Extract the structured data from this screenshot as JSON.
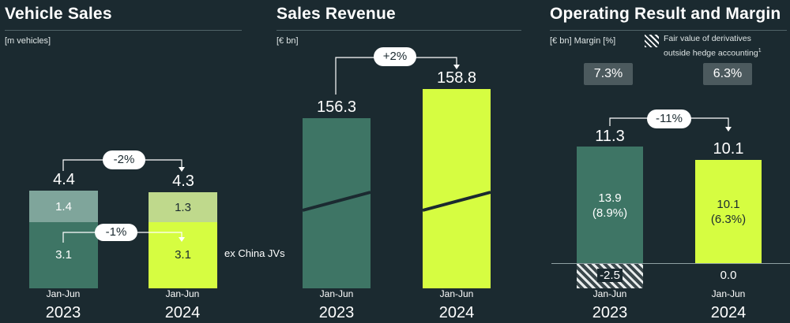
{
  "colors": {
    "background": "#1b2a30",
    "bar_2023": "#3e7565",
    "bar_2023_top": "#7fa59b",
    "bar_2024": "#d6fd41",
    "bar_2024_top": "#bfd98c",
    "pill": "#ffffff",
    "margin_box": "#4c5a5e"
  },
  "vehicle_sales": {
    "title": "Vehicle Sales",
    "unit": "[m vehicles]",
    "change_total": "-2%",
    "change_ex_china": "-1%",
    "ex_china_label": "ex China JVs",
    "x1a": "Jan-Jun",
    "x1b": "2023",
    "x2a": "Jan-Jun",
    "x2b": "2024",
    "total_2023": "4.4",
    "total_2024": "4.3",
    "china_2023": "1.4",
    "china_2024": "1.3",
    "ex_2023": "3.1",
    "ex_2024": "3.1"
  },
  "sales_revenue": {
    "title": "Sales Revenue",
    "unit": "[€ bn]",
    "change": "+2%",
    "val_2023": "156.3",
    "val_2024": "158.8",
    "x1a": "Jan-Jun",
    "x1b": "2023",
    "x2a": "Jan-Jun",
    "x2b": "2024"
  },
  "operating_result": {
    "title": "Operating Result and Margin",
    "unit": "[€ bn] Margin [%]",
    "legend_line1": "Fair value of derivatives",
    "legend_line2": "outside hedge accounting",
    "legend_sup": "1",
    "margin_2023": "7.3%",
    "margin_2024": "6.3%",
    "change": "-11%",
    "total_2023": "11.3",
    "total_2024": "10.1",
    "main_2023": "13.9",
    "main_2023_pct": "(8.9%)",
    "main_2024": "10.1",
    "main_2024_pct": "(6.3%)",
    "deriv_2023": "-2.5",
    "deriv_2024": "0.0",
    "x1a": "Jan-Jun",
    "x1b": "2023",
    "x2a": "Jan-Jun",
    "x2b": "2024"
  },
  "chart_data": [
    {
      "type": "bar",
      "title": "Vehicle Sales",
      "ylabel": "m vehicles",
      "categories": [
        "Jan-Jun 2023",
        "Jan-Jun 2024"
      ],
      "series": [
        {
          "name": "ex China JVs",
          "values": [
            3.1,
            3.1
          ]
        },
        {
          "values": [
            1.4,
            1.3
          ]
        }
      ],
      "totals": [
        4.4,
        4.3
      ],
      "annotations": [
        "-2%",
        "-1%"
      ]
    },
    {
      "type": "bar",
      "title": "Sales Revenue",
      "ylabel": "€ bn",
      "categories": [
        "Jan-Jun 2023",
        "Jan-Jun 2024"
      ],
      "values": [
        156.3,
        158.8
      ],
      "annotations": [
        "+2%"
      ]
    },
    {
      "type": "bar",
      "title": "Operating Result and Margin",
      "ylabel": "€ bn",
      "categories": [
        "Jan-Jun 2023",
        "Jan-Jun 2024"
      ],
      "series": [
        {
          "values": [
            13.9,
            10.1
          ]
        },
        {
          "name": "Fair value of derivatives outside hedge accounting",
          "values": [
            -2.5,
            0.0
          ]
        }
      ],
      "totals": [
        11.3,
        10.1
      ],
      "margins": [
        "7.3%",
        "6.3%"
      ],
      "segment_margins": [
        "8.9%",
        "6.3%"
      ],
      "annotations": [
        "-11%"
      ]
    }
  ]
}
